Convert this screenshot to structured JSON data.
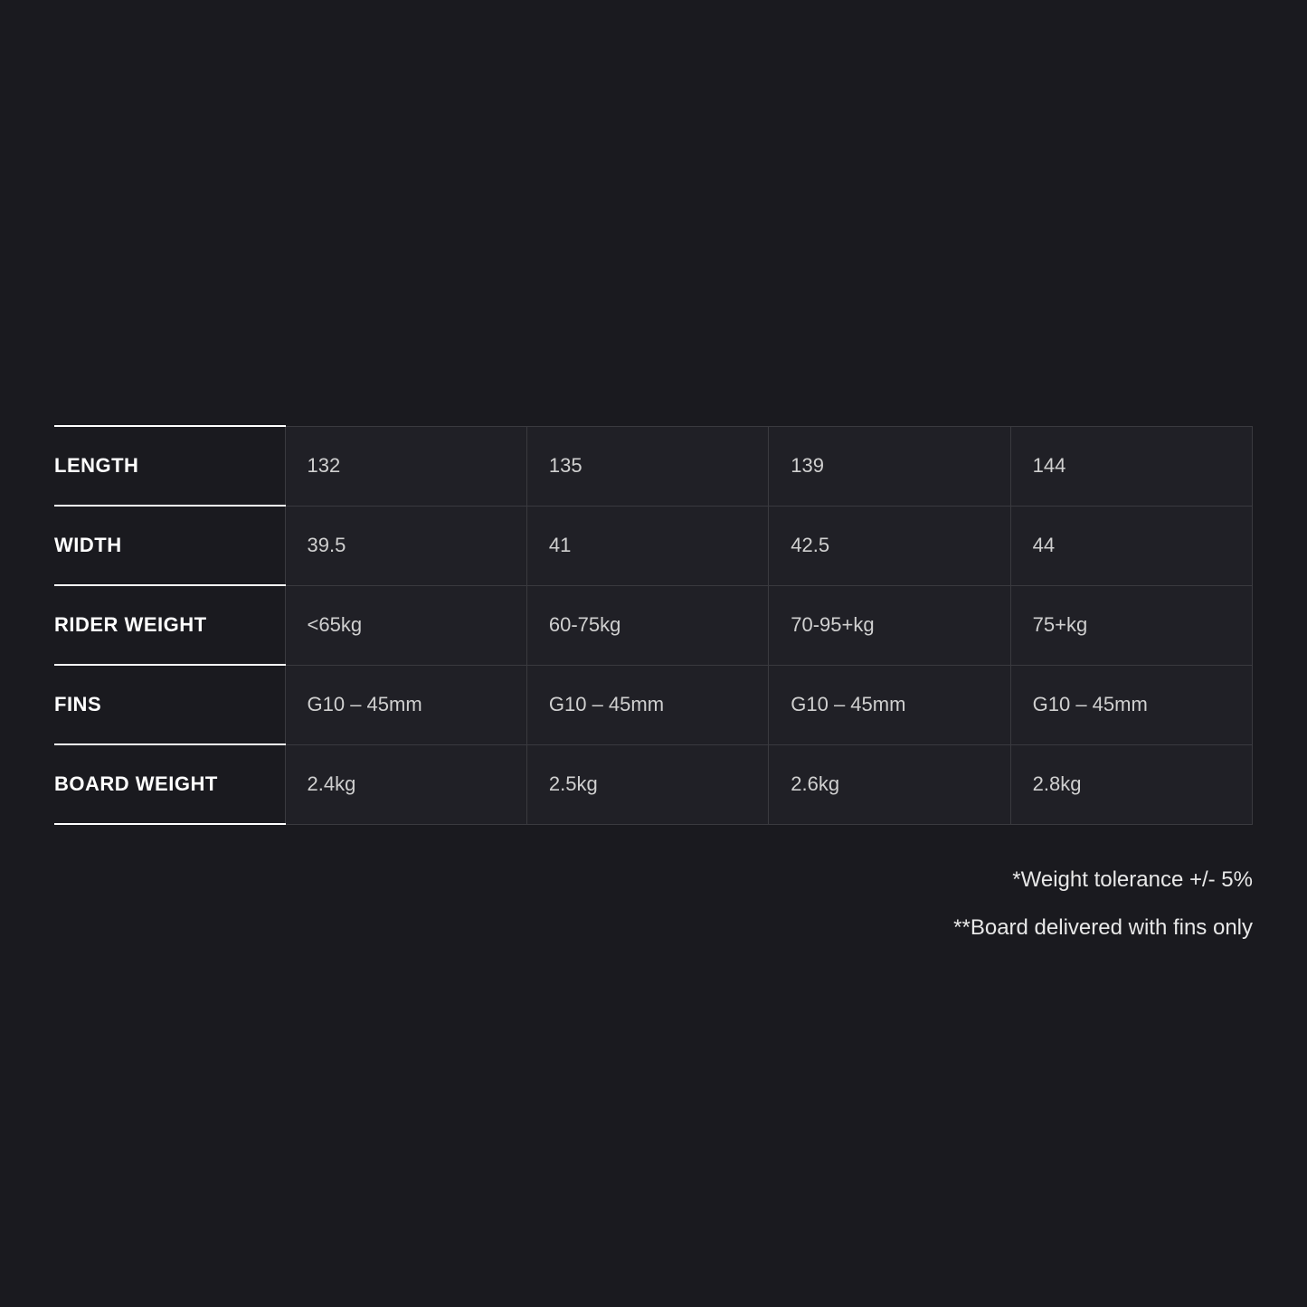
{
  "table": {
    "rows": [
      {
        "label": "LENGTH",
        "cells": [
          "132",
          "135",
          "139",
          "144"
        ]
      },
      {
        "label": "WIDTH",
        "cells": [
          "39.5",
          "41",
          "42.5",
          "44"
        ]
      },
      {
        "label": "RIDER WEIGHT",
        "cells": [
          "<65kg",
          "60-75kg",
          "70-95+kg",
          "75+kg"
        ]
      },
      {
        "label": "FINS",
        "cells": [
          "G10 – 45mm",
          "G10 – 45mm",
          "G10 – 45mm",
          "G10 – 45mm"
        ]
      },
      {
        "label": "BOARD WEIGHT",
        "cells": [
          "2.4kg",
          "2.5kg",
          "2.6kg",
          "2.8kg"
        ]
      }
    ],
    "header_fontsize": 22,
    "cell_fontsize": 22,
    "header_color": "#ffffff",
    "cell_color": "#d0d0d0",
    "cell_background": "#202026",
    "cell_border_color": "#3a3a3f",
    "header_border_color": "#ffffff"
  },
  "notes": {
    "line1": "*Weight tolerance +/- 5%",
    "line2": "**Board delivered with fins only",
    "fontsize": 24,
    "color": "#e8e8e8"
  },
  "background_color": "#1a1a1f"
}
